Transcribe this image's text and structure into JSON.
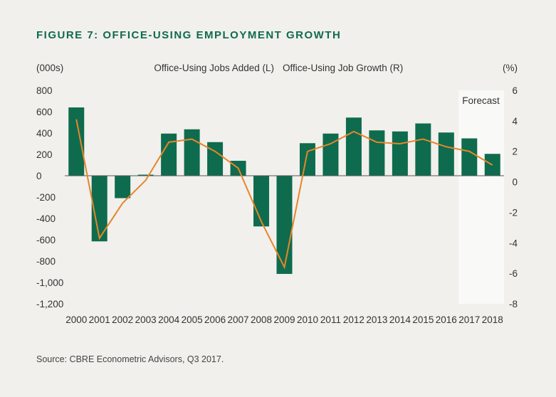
{
  "title": "FIGURE 7: OFFICE-USING EMPLOYMENT GROWTH",
  "source": "Source: CBRE Econometric Advisors, Q3 2017.",
  "colors": {
    "bar": "#0f6b4e",
    "line": "#e8852a",
    "title": "#0f6b4e",
    "background": "#f1f0ec",
    "forecast_band": "#f9f9f7"
  },
  "chart_data": {
    "type": "bar",
    "categories": [
      "2000",
      "2001",
      "2002",
      "2003",
      "2004",
      "2005",
      "2006",
      "2007",
      "2008",
      "2009",
      "2010",
      "2011",
      "2012",
      "2013",
      "2014",
      "2015",
      "2016",
      "2017",
      "2018"
    ],
    "series": [
      {
        "name": "Office-Using Jobs Added (L)",
        "type": "bar",
        "axis": "left",
        "values": [
          640,
          -615,
          -210,
          10,
          395,
          435,
          315,
          140,
          -475,
          -920,
          305,
          395,
          545,
          425,
          415,
          490,
          405,
          350,
          205
        ]
      },
      {
        "name": "Office-Using Job Growth (R)",
        "type": "line",
        "axis": "right",
        "values": [
          4.1,
          -3.7,
          -1.4,
          0.1,
          2.6,
          2.8,
          2.0,
          0.9,
          -2.6,
          -5.6,
          2.0,
          2.5,
          3.3,
          2.6,
          2.5,
          2.8,
          2.3,
          2.0,
          1.1
        ]
      }
    ],
    "left_axis": {
      "label": "(000s)",
      "min": -1200,
      "max": 800,
      "ticks": [
        800,
        600,
        400,
        200,
        0,
        -200,
        -400,
        -600,
        -800,
        -1000,
        -1200
      ],
      "tick_labels": [
        "800",
        "600",
        "400",
        "200",
        "0",
        "-200",
        "-400",
        "-600",
        "-800",
        "-1,000",
        "-1,200"
      ]
    },
    "right_axis": {
      "label": "(%)",
      "min": -8,
      "max": 6,
      "ticks": [
        6,
        4,
        2,
        0,
        -2,
        -4,
        -6,
        -8
      ],
      "tick_labels": [
        "6",
        "4",
        "2",
        "0",
        "-2",
        "-4",
        "-6",
        "-8"
      ]
    },
    "forecast": {
      "label": "Forecast",
      "categories": [
        "2017",
        "2018"
      ]
    },
    "legend_position": "top-center",
    "grid": false
  }
}
